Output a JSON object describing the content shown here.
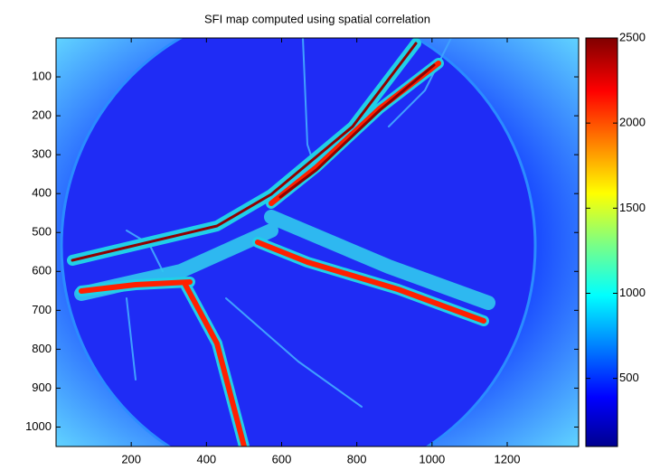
{
  "chart_data": {
    "type": "heatmap",
    "title": "SFI map computed using spatial correlation",
    "xlim": [
      0,
      1390
    ],
    "xticks": [
      200,
      400,
      600,
      800,
      1000,
      1200
    ],
    "ylim": [
      0,
      1050
    ],
    "yticks": [
      100,
      200,
      300,
      400,
      500,
      600,
      700,
      800,
      900,
      1000
    ],
    "y_reversed": true,
    "colormap": "jet",
    "clim": [
      100,
      2500
    ],
    "cticks": [
      500,
      1000,
      1500,
      2000,
      2500
    ]
  }
}
